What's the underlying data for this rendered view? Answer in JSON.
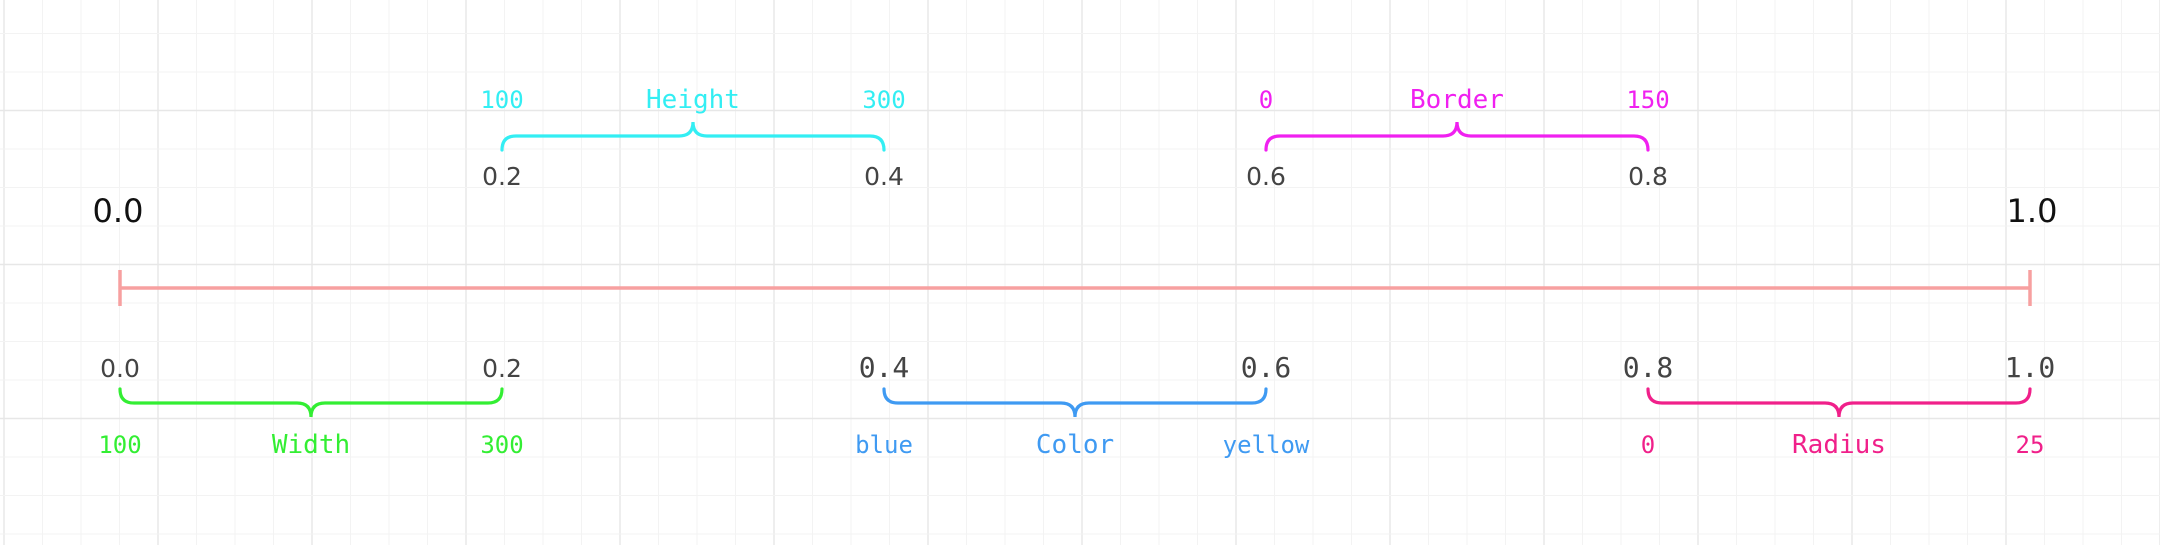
{
  "timeline": {
    "start_label": "0.0",
    "end_label": "1.0",
    "line_color": "#f7a0a0"
  },
  "segments": [
    {
      "name": "Width",
      "start": "0.0",
      "end": "0.2",
      "from_value": "100",
      "to_value": "300",
      "color": "#33ee33",
      "side": "below"
    },
    {
      "name": "Height",
      "start": "0.2",
      "end": "0.4",
      "from_value": "100",
      "to_value": "300",
      "color": "#33eef3",
      "side": "above"
    },
    {
      "name": "Color",
      "start": "0.4",
      "end": "0.6",
      "from_value": "blue",
      "to_value": "yellow",
      "color": "#3f9af2",
      "side": "below"
    },
    {
      "name": "Border",
      "start": "0.6",
      "end": "0.8",
      "from_value": "0",
      "to_value": "150",
      "color": "#f020f0",
      "side": "above"
    },
    {
      "name": "Radius",
      "start": "0.8",
      "end": "1.0",
      "from_value": "0",
      "to_value": "25",
      "color": "#f0208a",
      "side": "below"
    }
  ]
}
